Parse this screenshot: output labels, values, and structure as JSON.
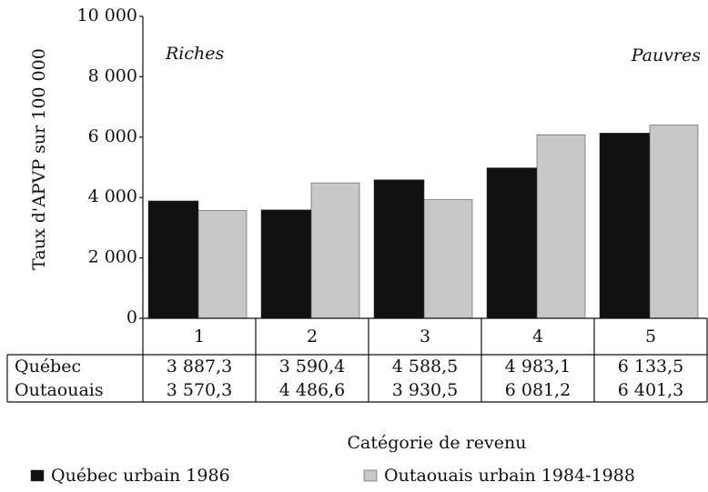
{
  "chart_data": {
    "type": "bar",
    "y_label": "Taux d'APVP sur 100 000",
    "x_label": "Catégorie de revenu",
    "annotations": [
      "Riches",
      "Pauvres"
    ],
    "categories": [
      "1",
      "2",
      "3",
      "4",
      "5"
    ],
    "row_labels": [
      "Québec",
      "Outaouais"
    ],
    "series": [
      {
        "name": "Québec urbain 1986",
        "color": "#111111",
        "values": [
          3887.3,
          3590.4,
          4588.5,
          4983.1,
          6133.5
        ],
        "value_labels": [
          "3 887,3",
          "3 590,4",
          "4 588,5",
          "4 983,1",
          "6 133,5"
        ]
      },
      {
        "name": "Outaouais urbain 1984-1988",
        "color": "#c8c8c8",
        "values": [
          3570.3,
          4486.6,
          3930.5,
          6081.2,
          6401.3
        ],
        "value_labels": [
          "3 570,3",
          "4 486,6",
          "3 930,5",
          "6 081,2",
          "6 401,3"
        ]
      }
    ],
    "ylim": [
      0,
      10000
    ],
    "yticks": [
      0,
      {
        "value": 2000,
        "label": "2 000"
      },
      {
        "value": 4000,
        "label": "4 000"
      },
      {
        "value": 6000,
        "label": "6 000"
      },
      {
        "value": 8000,
        "label": "8 000"
      },
      {
        "value": 10000,
        "label": "10 000"
      }
    ],
    "grid": false
  }
}
